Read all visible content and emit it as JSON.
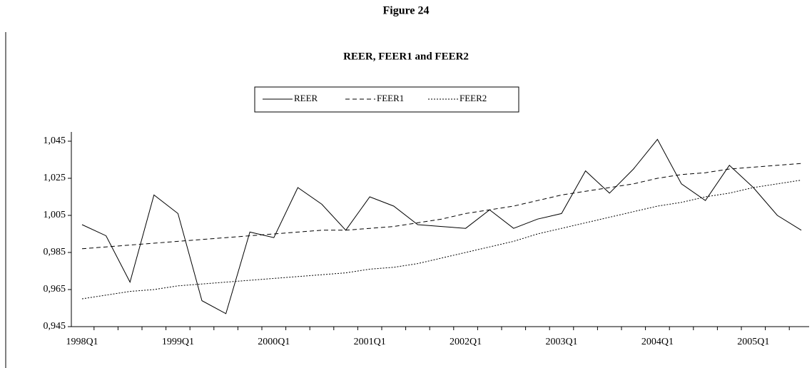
{
  "chart_data": {
    "type": "line",
    "figure_label": "Figure 24",
    "title": "REER, FEER1 and FEER2",
    "categories": [
      "1998Q1",
      null,
      null,
      null,
      "1999Q1",
      null,
      null,
      null,
      "2000Q1",
      null,
      null,
      null,
      "2001Q1",
      null,
      null,
      null,
      "2002Q1",
      null,
      null,
      null,
      "2003Q1",
      null,
      null,
      null,
      "2004Q1",
      null,
      null,
      null,
      "2005Q1",
      null,
      null
    ],
    "series": [
      {
        "name": "REER",
        "color": "#000000",
        "dash": "solid",
        "values": [
          1.0,
          0.994,
          0.969,
          1.016,
          1.006,
          0.959,
          0.952,
          0.996,
          0.993,
          1.02,
          1.011,
          0.997,
          1.015,
          1.01,
          1.0,
          0.999,
          0.998,
          1.008,
          0.998,
          1.003,
          1.006,
          1.029,
          1.017,
          1.03,
          1.046,
          1.022,
          1.013,
          1.032,
          1.02,
          1.005,
          0.997
        ]
      },
      {
        "name": "FEER1",
        "color": "#000000",
        "dash": "dashed",
        "values": [
          0.987,
          0.988,
          0.989,
          0.99,
          0.991,
          0.992,
          0.993,
          0.994,
          0.995,
          0.996,
          0.997,
          0.997,
          0.998,
          0.999,
          1.001,
          1.003,
          1.006,
          1.008,
          1.01,
          1.013,
          1.016,
          1.018,
          1.02,
          1.022,
          1.025,
          1.027,
          1.028,
          1.03,
          1.031,
          1.032,
          1.033
        ]
      },
      {
        "name": "FEER2",
        "color": "#000000",
        "dash": "dotted",
        "values": [
          0.96,
          0.962,
          0.964,
          0.965,
          0.967,
          0.968,
          0.969,
          0.97,
          0.971,
          0.972,
          0.973,
          0.974,
          0.976,
          0.977,
          0.979,
          0.982,
          0.985,
          0.988,
          0.991,
          0.995,
          0.998,
          1.001,
          1.004,
          1.007,
          1.01,
          1.012,
          1.015,
          1.017,
          1.02,
          1.022,
          1.024
        ]
      }
    ],
    "ylim": [
      0.945,
      1.05
    ],
    "yticks": [
      {
        "value": 0.945,
        "label": "0,945"
      },
      {
        "value": 0.965,
        "label": "0,965"
      },
      {
        "value": 0.985,
        "label": "0,985"
      },
      {
        "value": 1.005,
        "label": "1,005"
      },
      {
        "value": 1.025,
        "label": "1,025"
      },
      {
        "value": 1.045,
        "label": "1,045"
      }
    ],
    "grid": false,
    "legend": "top"
  }
}
